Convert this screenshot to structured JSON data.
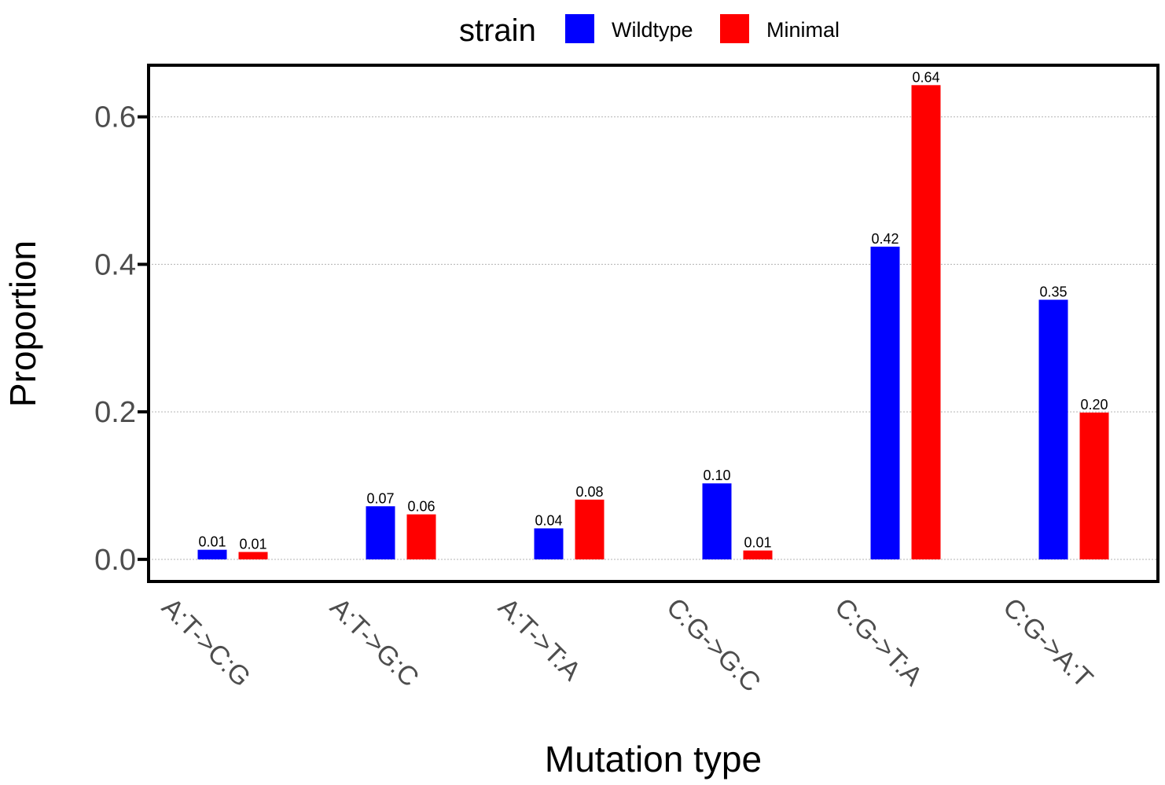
{
  "chart_data": {
    "type": "bar",
    "xlabel": "Mutation type",
    "ylabel": "Proportion",
    "categories": [
      "A:T->C:G",
      "A:T->G:C",
      "A:T->T:A",
      "C:G->G:C",
      "C:G->T:A",
      "C:G->A:T"
    ],
    "series": [
      {
        "name": "Wildtype",
        "color": "#0000ff",
        "values": [
          0.013,
          0.072,
          0.042,
          0.103,
          0.424,
          0.352
        ]
      },
      {
        "name": "Minimal",
        "color": "#ff0000",
        "values": [
          0.01,
          0.061,
          0.081,
          0.012,
          0.643,
          0.199
        ]
      }
    ],
    "data_labels": [
      [
        "0.01",
        "0.07",
        "0.04",
        "0.10",
        "0.42",
        "0.35"
      ],
      [
        "0.01",
        "0.06",
        "0.08",
        "0.01",
        "0.64",
        "0.20"
      ]
    ],
    "yticks": [
      0.0,
      0.2,
      0.4,
      0.6
    ],
    "ytick_labels": [
      "0.0",
      "0.2",
      "0.4",
      "0.6"
    ],
    "ylim": [
      -0.03,
      0.67
    ],
    "legend": {
      "title": "strain",
      "position": "top"
    },
    "grid": "horizontal dotted"
  }
}
